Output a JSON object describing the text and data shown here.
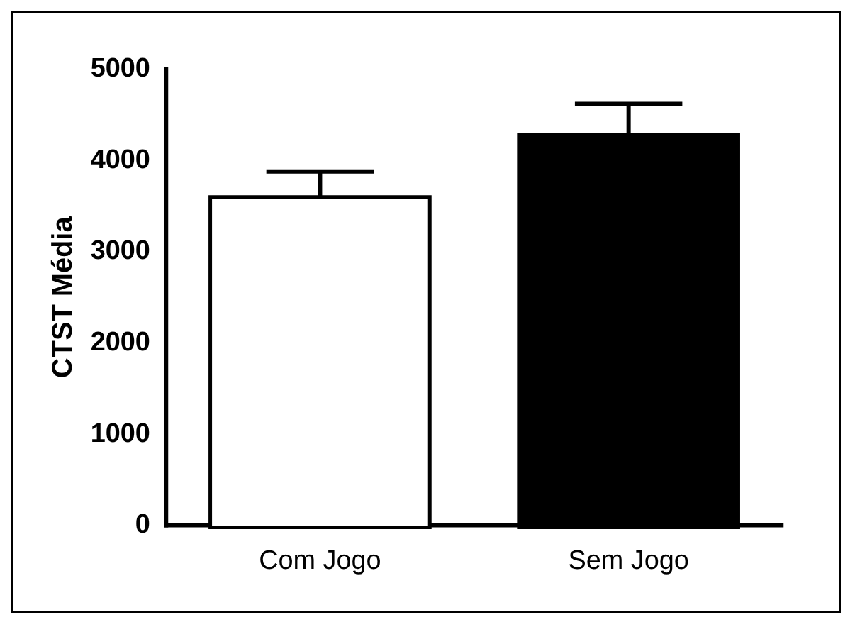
{
  "chart_data": {
    "type": "bar",
    "ylabel": "CTST Média",
    "categories": [
      "Com Jogo",
      "Sem Jogo"
    ],
    "values": [
      3580,
      4260
    ],
    "colors": [
      "#ffffff",
      "#000000"
    ],
    "errors": [
      [
        3580,
        3880
      ],
      [
        4260,
        4620
      ]
    ],
    "ylim": [
      0,
      5000
    ],
    "yticks": [
      0,
      1000,
      2000,
      3000,
      4000,
      5000
    ],
    "grid": false,
    "legend": false
  }
}
